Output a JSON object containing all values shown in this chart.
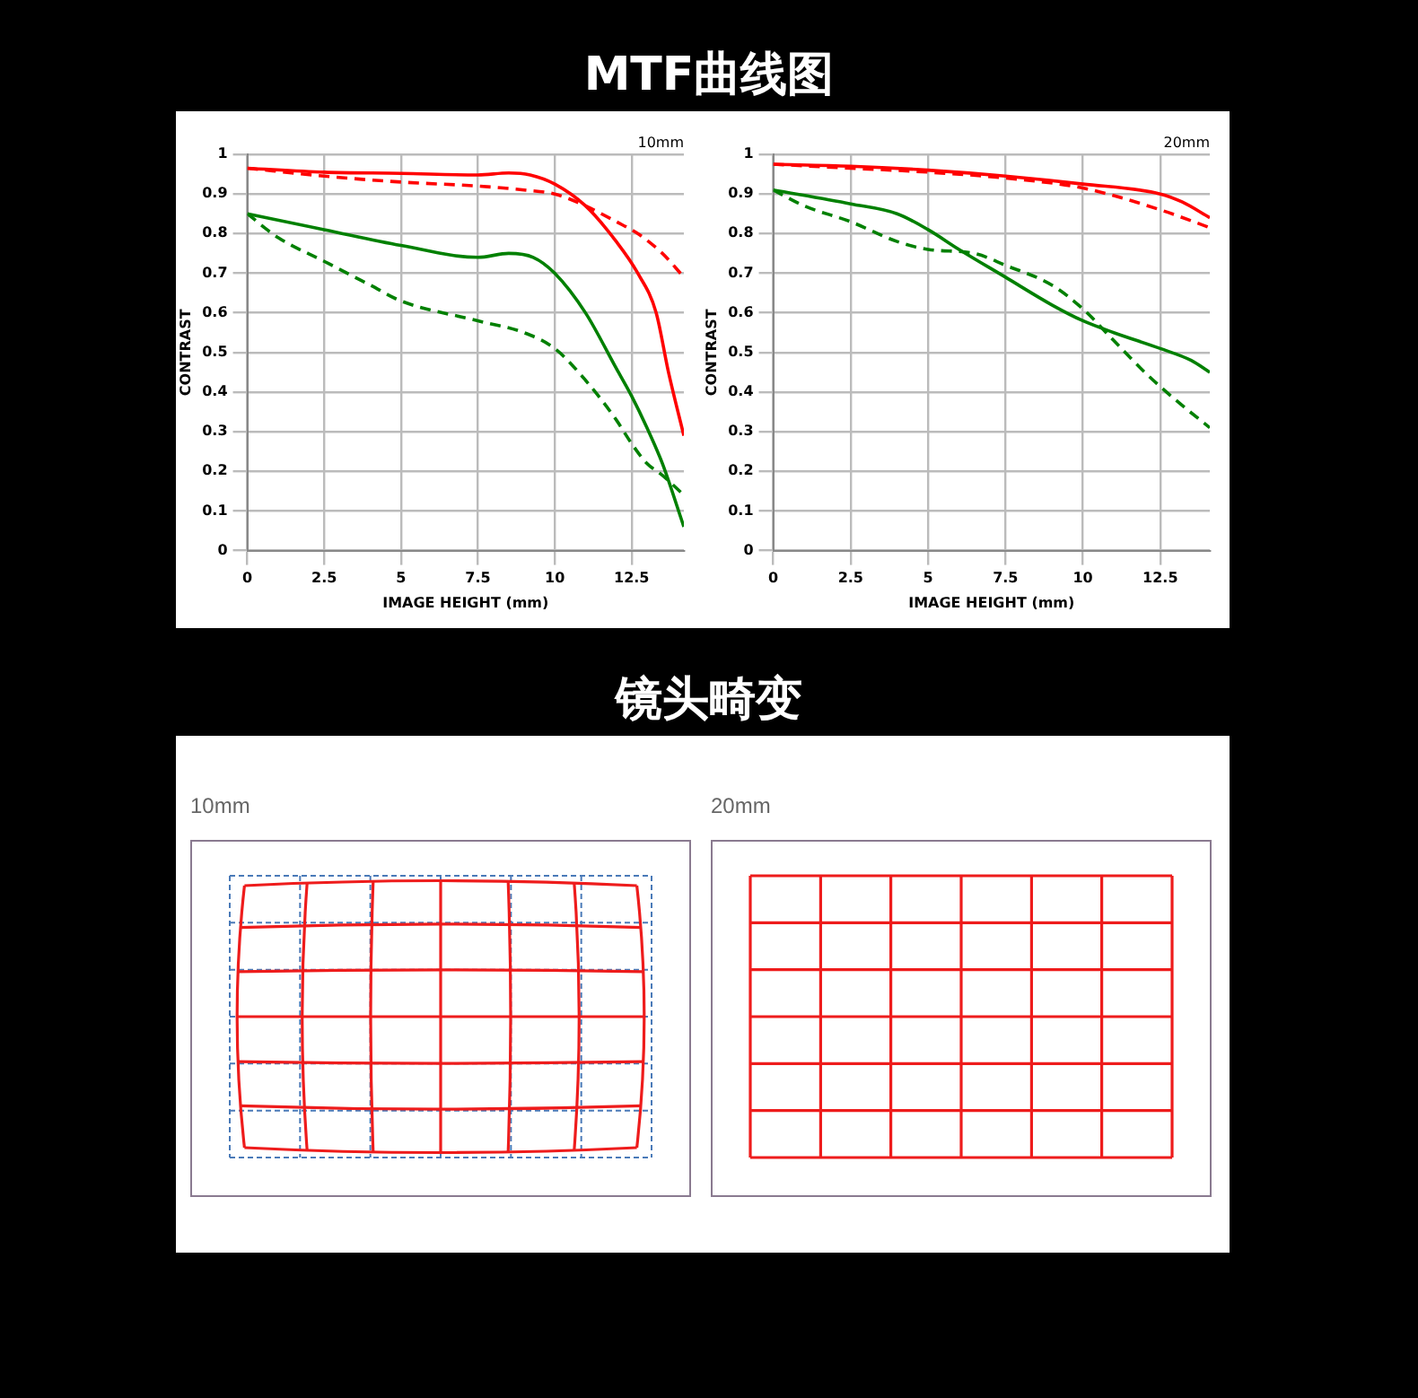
{
  "chart_data": [
    {
      "type": "line",
      "title": "MTF曲线图",
      "xlabel": "IMAGE HEIGHT (mm)",
      "ylabel": "CONTRAST",
      "annotations": [
        "10mm"
      ],
      "xlim": [
        0,
        14.2
      ],
      "xticks": [
        0,
        2.5,
        5,
        7.5,
        10,
        12.5
      ],
      "ylim": [
        0,
        1
      ],
      "yticks": [
        0,
        0.1,
        0.2,
        0.3,
        0.4,
        0.5,
        0.6,
        0.7,
        0.8,
        0.9,
        1
      ],
      "grid": true,
      "legend": false,
      "marker": "none",
      "series": [
        {
          "color": "#ff0000",
          "line_style": "solid",
          "x": [
            0,
            2.5,
            5,
            7.5,
            8.5,
            9.2,
            10,
            11,
            12,
            12.7,
            13.3,
            13.7,
            14.2
          ],
          "values": [
            0.965,
            0.955,
            0.952,
            0.948,
            0.953,
            0.948,
            0.925,
            0.87,
            0.78,
            0.7,
            0.6,
            0.45,
            0.29
          ]
        },
        {
          "color": "#ff0000",
          "line_style": "dashed",
          "x": [
            0,
            2.5,
            5,
            7.5,
            9,
            10,
            11,
            12,
            12.7,
            13.5,
            14.2
          ],
          "values": [
            0.965,
            0.945,
            0.93,
            0.92,
            0.91,
            0.9,
            0.87,
            0.83,
            0.8,
            0.75,
            0.69
          ]
        },
        {
          "color": "#008000",
          "line_style": "solid",
          "x": [
            0,
            2.5,
            5,
            7.5,
            8.5,
            9.3,
            10,
            11,
            12,
            12.5,
            13,
            13.5,
            14.2
          ],
          "values": [
            0.85,
            0.81,
            0.77,
            0.74,
            0.75,
            0.74,
            0.7,
            0.6,
            0.46,
            0.39,
            0.31,
            0.22,
            0.06
          ]
        },
        {
          "color": "#008000",
          "line_style": "dashed",
          "x": [
            0,
            1,
            2.5,
            4,
            5,
            7.5,
            9,
            10,
            11,
            12,
            12.5,
            13,
            13.5,
            14.2
          ],
          "values": [
            0.85,
            0.79,
            0.73,
            0.67,
            0.63,
            0.58,
            0.55,
            0.51,
            0.43,
            0.33,
            0.27,
            0.22,
            0.19,
            0.14
          ]
        }
      ]
    },
    {
      "type": "line",
      "xlabel": "IMAGE HEIGHT (mm)",
      "ylabel": "CONTRAST",
      "annotations": [
        "20mm"
      ],
      "xlim": [
        0,
        14.1
      ],
      "xticks": [
        0,
        2.5,
        5,
        7.5,
        10,
        12.5
      ],
      "ylim": [
        0,
        1
      ],
      "yticks": [
        0,
        0.1,
        0.2,
        0.3,
        0.4,
        0.5,
        0.6,
        0.7,
        0.8,
        0.9,
        1
      ],
      "grid": true,
      "legend": false,
      "marker": "none",
      "series": [
        {
          "color": "#ff0000",
          "line_style": "solid",
          "x": [
            0,
            2.5,
            5,
            7.5,
            10,
            12.5,
            13.2,
            14.1
          ],
          "values": [
            0.975,
            0.97,
            0.96,
            0.945,
            0.925,
            0.9,
            0.88,
            0.84
          ]
        },
        {
          "color": "#ff0000",
          "line_style": "dashed",
          "x": [
            0,
            2.5,
            5,
            7.5,
            10,
            12.5,
            14.1
          ],
          "values": [
            0.975,
            0.965,
            0.955,
            0.94,
            0.915,
            0.86,
            0.815
          ]
        },
        {
          "color": "#008000",
          "line_style": "solid",
          "x": [
            0,
            2.5,
            4,
            5,
            6,
            7.5,
            9,
            10,
            11,
            12.5,
            13.5,
            14.1
          ],
          "values": [
            0.91,
            0.875,
            0.85,
            0.81,
            0.76,
            0.69,
            0.62,
            0.58,
            0.55,
            0.51,
            0.48,
            0.45
          ]
        },
        {
          "color": "#008000",
          "line_style": "dashed",
          "x": [
            0,
            1,
            2.5,
            4,
            5,
            6.5,
            7.5,
            9,
            10,
            11,
            12,
            13,
            14.1
          ],
          "values": [
            0.91,
            0.87,
            0.83,
            0.78,
            0.76,
            0.75,
            0.72,
            0.67,
            0.61,
            0.53,
            0.45,
            0.38,
            0.31
          ]
        }
      ]
    },
    {
      "type": "other",
      "title": "镜头畸变",
      "annotations": [
        "10mm",
        "20mm"
      ]
    }
  ]
}
